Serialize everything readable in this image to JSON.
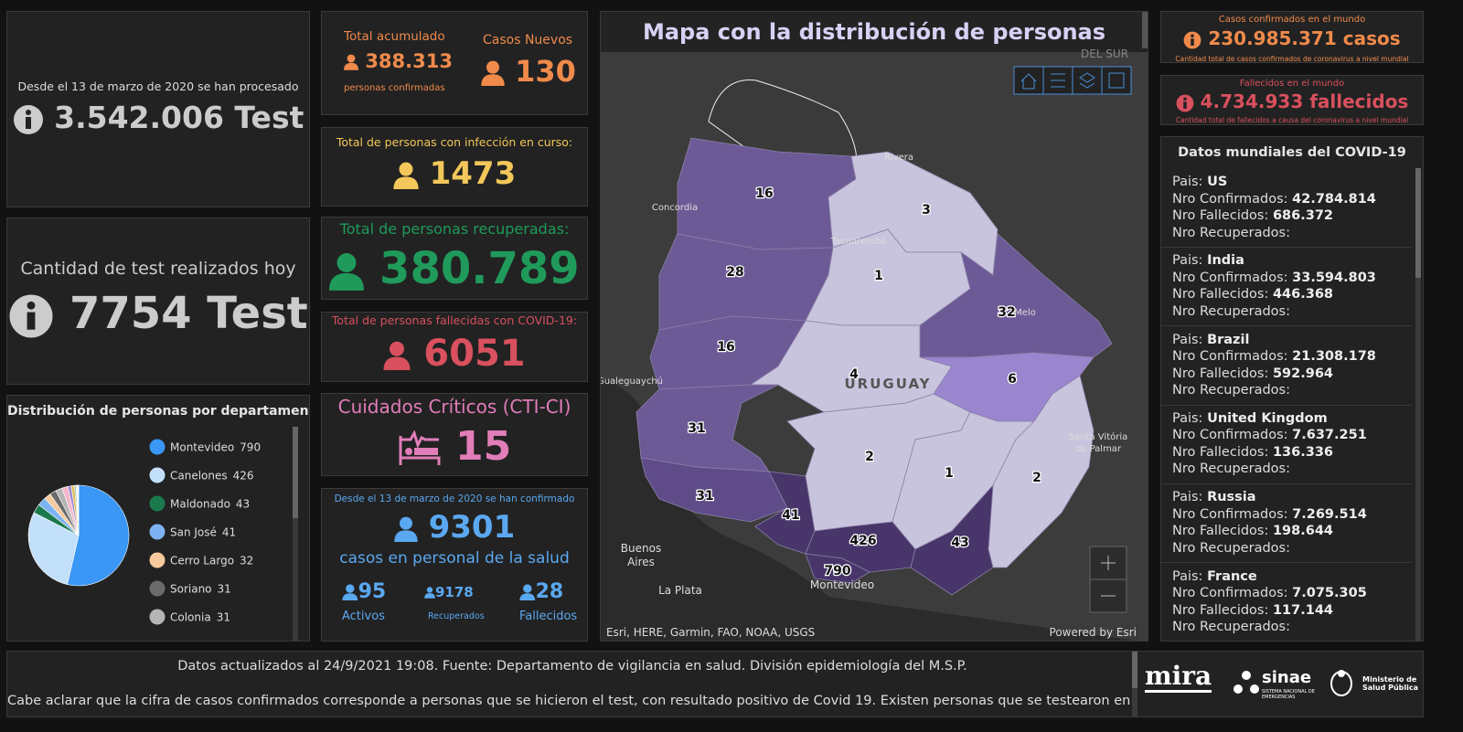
{
  "tests_total": {
    "caption": "Desde el 13 de marzo de 2020 se han procesado",
    "value": "3.542.006 Test"
  },
  "tests_today": {
    "caption": "Cantidad de test realizados hoy",
    "value": "7754 Test"
  },
  "pie": {
    "type": "pie",
    "title": "Distribución de personas por departamento",
    "categories": [
      "Montevideo",
      "Canelones",
      "Maldonado",
      "San José",
      "Cerro Largo",
      "Soriano",
      "Colonia",
      null,
      null,
      null,
      null,
      null,
      null,
      null,
      null,
      null,
      null
    ],
    "values": [
      790,
      426,
      43,
      41,
      32,
      31,
      31,
      28,
      16,
      16,
      6,
      4,
      3,
      2,
      2,
      1,
      1
    ],
    "colors": [
      "#3a97f5",
      "#c3e0fa",
      "#1b7a4d",
      "#7db3f2",
      "#f6c99c",
      "#6b6b6b",
      "#b5b5b5",
      "#f4b7c9",
      "#9b86d1",
      "#e0c060",
      "#5fb8a0",
      "#d06a6a",
      "#8fd0e8",
      "#a0a0d8",
      "#e89060",
      "#c8e890",
      "#d0a0d0"
    ]
  },
  "accumulated": {
    "title": "Total acumulado",
    "value": "388.313",
    "caption": "personas confirmadas",
    "new_title": "Casos Nuevos",
    "new_value": "130"
  },
  "active": {
    "title": "Total de personas con infección en curso:",
    "value": "1473"
  },
  "recovered": {
    "title": "Total de personas recuperadas:",
    "value": "380.789"
  },
  "deceased": {
    "title": "Total de personas fallecidas con COVID-19:",
    "value": "6051"
  },
  "critical": {
    "title": "Cuidados Críticos (CTI-CI)",
    "value": "15"
  },
  "health_staff": {
    "caption": "Desde el 13 de marzo de 2020 se han confirmado",
    "value": "9301",
    "subtitle": "casos en personal de la salud",
    "breakdown": [
      {
        "value": "95",
        "label": "Activos"
      },
      {
        "value": "9178",
        "label": "Recuperados"
      },
      {
        "value": "28",
        "label": "Fallecidos"
      }
    ]
  },
  "map": {
    "title": "Mapa con la distribución de personas",
    "regions": [
      {
        "value": 16,
        "color": "#6c5a96"
      },
      {
        "value": 3,
        "color": "#c9c4dd"
      },
      {
        "value": 28,
        "color": "#6c5a96"
      },
      {
        "value": 1,
        "color": "#c9c4dd"
      },
      {
        "value": 32,
        "color": "#6c5a96"
      },
      {
        "value": 16,
        "color": "#6c5a96"
      },
      {
        "value": 4,
        "color": "#c9c4dd"
      },
      {
        "value": 6,
        "color": "#9a85cf"
      },
      {
        "value": 31,
        "color": "#6c5a96"
      },
      {
        "value": 2,
        "color": "#c9c4dd"
      },
      {
        "value": 1,
        "color": "#c9c4dd"
      },
      {
        "value": 2,
        "color": "#c9c4dd"
      },
      {
        "value": 31,
        "color": "#5e4b88"
      },
      {
        "value": 41,
        "color": "#48356a"
      },
      {
        "value": 426,
        "color": "#48356a"
      },
      {
        "value": 43,
        "color": "#48356a"
      },
      {
        "value": 790,
        "color": "#48356a"
      }
    ],
    "places": [
      "DEL SUR",
      "Rivera",
      "Concordia",
      "Tacuarembó",
      "Melo",
      "URUGUAY",
      "Gualeguaychú",
      "Santa Vitória do Palmar",
      "Buenos Aires",
      "La Plata",
      "Montevideo"
    ],
    "attribution": "Esri, HERE, Garmin, FAO, NOAA, USGS",
    "powered": "Powered by Esri"
  },
  "world_cases": {
    "title": "Casos confirmados en el mundo",
    "value": "230.985.371 casos",
    "caption": "Cantidad total de casos confirmados de coronavirus a nivel mundial"
  },
  "world_deaths": {
    "title": "Fallecidos en el mundo",
    "value": "4.734.933 fallecidos",
    "caption": "Cantidad total de fallecidos a causa del coronavirus a nivel mundial"
  },
  "world_list": {
    "title": "Datos mundiales del COVID-19",
    "labels": [
      "Pais:",
      "Nro Confirmados:",
      "Nro Fallecidos:",
      "Nro Recuperados:"
    ],
    "countries": [
      {
        "name": "US",
        "confirmed": "42.784.814",
        "deaths": "686.372"
      },
      {
        "name": "India",
        "confirmed": "33.594.803",
        "deaths": "446.368"
      },
      {
        "name": "Brazil",
        "confirmed": "21.308.178",
        "deaths": "592.964"
      },
      {
        "name": "United Kingdom",
        "confirmed": "7.637.251",
        "deaths": "136.336"
      },
      {
        "name": "Russia",
        "confirmed": "7.269.514",
        "deaths": "198.644"
      },
      {
        "name": "France",
        "confirmed": "7.075.305",
        "deaths": "117.144"
      }
    ]
  },
  "footer": {
    "lines": [
      "Datos actualizados al 24/9/2021 19:08. Fuente: Departamento de vigilancia en salud. División epidemiología del M.S.P.",
      "Cabe aclarar que la cifra de casos confirmados corresponde a personas que se hicieron el test, con resultado positivo de Covid 19. Existen personas que se testearon en más"
    ],
    "logos": [
      "mira",
      "sinae",
      "SISTEMA NACIONAL DE EMERGENCIAS",
      "Ministerio de Salud Pública"
    ]
  }
}
